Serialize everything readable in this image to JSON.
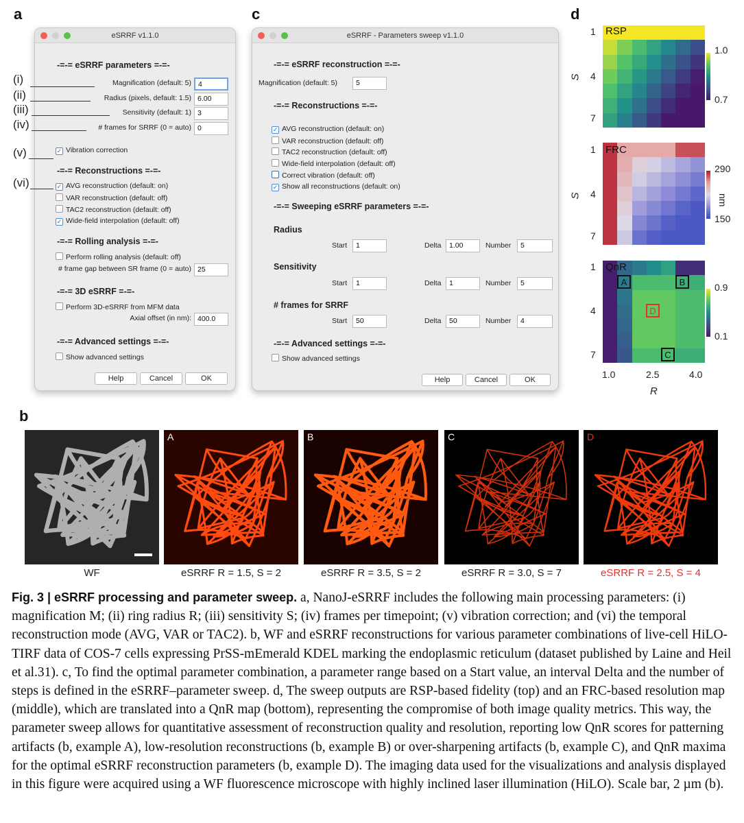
{
  "panels": {
    "a": "a",
    "b": "b",
    "c": "c",
    "d": "d"
  },
  "dialog_a": {
    "title": "eSRRF v1.1.0",
    "section_params": "-=-= eSRRF parameters =-=-",
    "magnification": {
      "label": "Magnification (default: 5)",
      "value": "4"
    },
    "radius": {
      "label": "Radius (pixels, default: 1.5)",
      "value": "6.00"
    },
    "sensitivity": {
      "label": "Sensitivity (default: 1)",
      "value": "3"
    },
    "frames": {
      "label": "# frames for SRRF (0 = auto)",
      "value": "0"
    },
    "vibration": "Vibration correction",
    "section_recon": "-=-= Reconstructions =-=-",
    "recon_items": [
      "AVG reconstruction (default: on)",
      "VAR reconstruction (default: off)",
      "TAC2 reconstruction (default: off)",
      "Wide-field interpolation (default: off)"
    ],
    "section_rolling": "-=-= Rolling analysis =-=-",
    "rolling_check": "Perform rolling analysis (default: off)",
    "frame_gap": {
      "label": "# frame gap between SR frame (0 = auto)",
      "value": "25"
    },
    "section_3d": "-=-= 3D eSRRF =-=-",
    "check_3d": "Perform 3D-eSRRF from MFM data",
    "axial": {
      "label": "Axial offset (in nm):",
      "value": "400.0"
    },
    "section_adv": "-=-= Advanced settings =-=-",
    "adv_check": "Show advanced settings",
    "buttons": {
      "help": "Help",
      "cancel": "Cancel",
      "ok": "OK"
    }
  },
  "roman_labels": [
    "(i)",
    "(ii)",
    "(iii)",
    "(iv)",
    "(v)",
    "(vi)"
  ],
  "dialog_c": {
    "title": "eSRRF - Parameters sweep v1.1.0",
    "section_recon1": "-=-= eSRRF reconstruction =-=-",
    "magnification": {
      "label": "Magnification (default: 5)",
      "value": "5"
    },
    "section_recon2": "-=-= Reconstructions =-=-",
    "recon_items": [
      "AVG reconstruction (default: on)",
      "VAR reconstruction (default: off)",
      "TAC2 reconstruction (default: off)",
      "Wide-field interpolation (default: off)",
      "Correct vibration (default: off)",
      "Show all reconstructions (default: on)"
    ],
    "section_sweep": "-=-= Sweeping eSRRF parameters =-=-",
    "radius": {
      "title": "Radius",
      "start_label": "Start",
      "start": "1",
      "delta_label": "Delta",
      "delta": "1.00",
      "number_label": "Number",
      "number": "5"
    },
    "sensitivity": {
      "title": "Sensitivity",
      "start_label": "Start",
      "start": "1",
      "delta_label": "Delta",
      "delta": "1",
      "number_label": "Number",
      "number": "5"
    },
    "frames": {
      "title": "# frames for SRRF",
      "start_label": "Start",
      "start": "50",
      "delta_label": "Delta",
      "delta": "50",
      "number_label": "Number",
      "number": "4"
    },
    "section_adv": "-=-= Advanced settings =-=-",
    "adv_check": "Show advanced settings",
    "buttons": {
      "help": "Help",
      "cancel": "Cancel",
      "ok": "OK"
    }
  },
  "heatmaps": {
    "rsp": {
      "title": "RSP",
      "cbar_max": "1.0",
      "cbar_min": "0.7"
    },
    "frc": {
      "title": "FRC",
      "cbar_max": "290",
      "cbar_min": "150",
      "unit": "nm"
    },
    "qnr": {
      "title": "QnR",
      "cbar_max": "0.9",
      "cbar_min": "0.1",
      "markers": [
        {
          "label": "A"
        },
        {
          "label": "B"
        },
        {
          "label": "C"
        },
        {
          "label": "D"
        }
      ]
    },
    "s_axis": {
      "label": "S",
      "ticks": [
        "1",
        "4",
        "7"
      ]
    },
    "r_axis": {
      "label": "R",
      "ticks": [
        "1.0",
        "2.5",
        "4.0"
      ]
    }
  },
  "images": [
    {
      "tag": "",
      "caption": "WF"
    },
    {
      "tag": "A",
      "caption": "eSRRF R = 1.5, S = 2"
    },
    {
      "tag": "B",
      "caption": "eSRRF R = 3.5, S = 2"
    },
    {
      "tag": "C",
      "caption": "eSRRF R = 3.0, S = 7"
    },
    {
      "tag": "D",
      "caption": "eSRRF R = 2.5, S = 4"
    }
  ],
  "caption": {
    "figlabel": "Fig. 3 | eSRRF processing and parameter sweep.",
    "text": " a, NanoJ-eSRRF includes the following main processing parameters: (i) magnification M; (ii) ring radius R; (iii) sensitivity S; (iv) frames per timepoint; (v) vibration correction; and (vi) the temporal reconstruction mode (AVG, VAR or TAC2). b, WF and eSRRF reconstructions for various parameter combinations of live-cell HiLO-TIRF data of COS-7 cells expressing PrSS-mEmerald KDEL marking the endoplasmic reticulum (dataset published by Laine and Heil et al.31). c, To find the optimal parameter combination, a parameter range based on a Start value, an interval Delta and the number of steps is defined in the eSRRF–parameter sweep. d, The sweep outputs are RSP-based fidelity (top) and an FRC-based resolution map (middle), which are translated into a QnR map (bottom), representing the compromise of both image quality metrics. This way, the parameter sweep allows for quantitative assessment of reconstruction quality and resolution, reporting low QnR scores for patterning artifacts (b, example A), low-resolution reconstructions (b, example B) or over-sharpening artifacts (b, example C), and QnR maxima for the optimal eSRRF reconstruction parameters (b, example D). The imaging data used for the visualizations and analysis displayed in this figure were acquired using a WF fluorescence microscope with highly inclined laser illumination (HiLO). Scale bar, 2 µm (b)."
  }
}
